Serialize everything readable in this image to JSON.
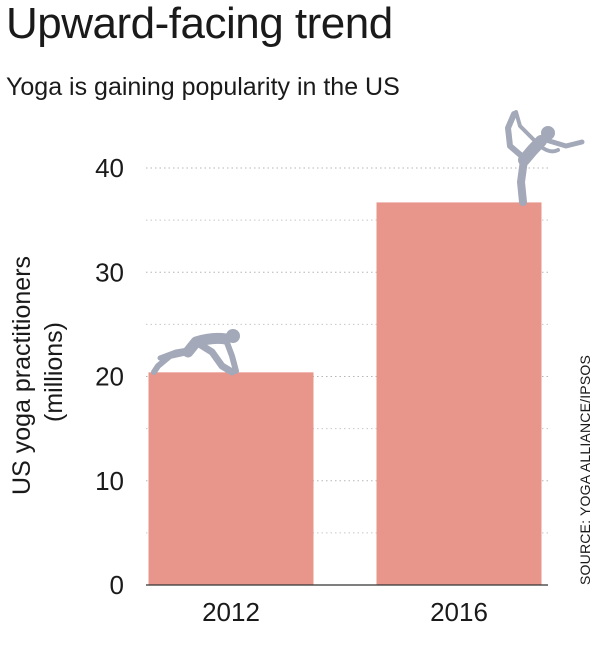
{
  "chart_data": {
    "type": "bar",
    "title": "Upward-facing trend",
    "subtitle": "Yoga is gaining popularity in the US",
    "categories": [
      "2012",
      "2016"
    ],
    "values": [
      20.4,
      36.7
    ],
    "ylabel_lines": [
      "US yoga practitioners",
      "(millions)"
    ],
    "xlabel": "",
    "ylim": [
      0,
      40
    ],
    "yticks": [
      0,
      10,
      20,
      30,
      40
    ],
    "grid": true,
    "source": "SOURCE: YOGA ALLIANCE/IPSOS",
    "bar_color": "#e8968b",
    "figure_color": "#a3a9b8",
    "icons": [
      "crouching-yoga-figure-icon",
      "dancer-pose-yoga-figure-icon"
    ]
  }
}
